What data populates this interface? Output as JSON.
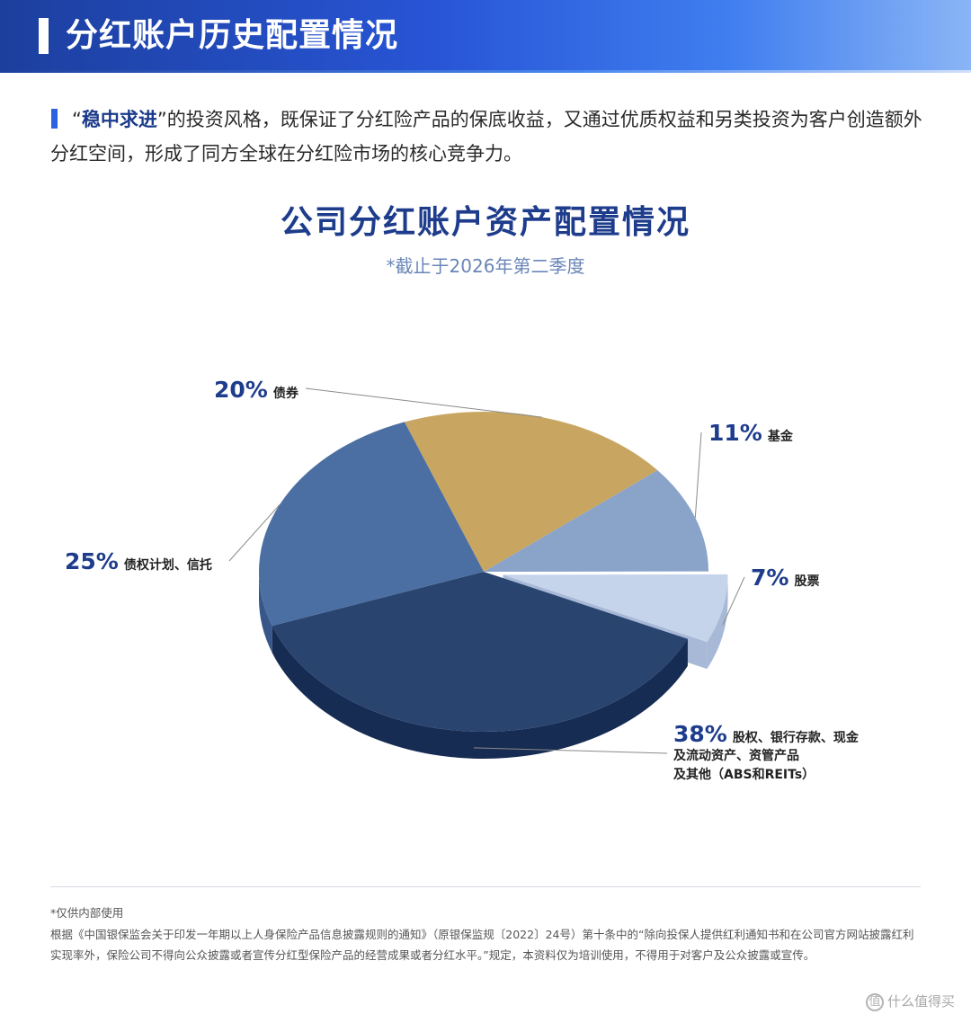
{
  "header": {
    "title": "分红账户历史配置情况"
  },
  "intro": {
    "quote_open": "“",
    "keyword": "稳中求进",
    "text": "”的投资风格，既保证了分红险产品的保底收益，又通过优质权益和另类投资为客户创造额外分红空间，形成了同方全球在分红险市场的核心竞争力。"
  },
  "chart_data": {
    "type": "pie",
    "title": "公司分红账户资产配置情况",
    "subtitle": "*截止于2026年第二季度",
    "slices": [
      {
        "pct_label": "20%",
        "value": 20,
        "name": "债券",
        "color": "#c8a661",
        "side": "#a5874b"
      },
      {
        "pct_label": "11%",
        "value": 11,
        "name": "基金",
        "color": "#8aa3c9",
        "side": "#6e88b0"
      },
      {
        "pct_label": "7%",
        "value": 7,
        "name": "股票",
        "color": "#c5d4ea",
        "side": "#a7b9d6"
      },
      {
        "pct_label": "38%",
        "value": 38,
        "name": "股权、银行存款、现金",
        "name_line2": "及流动资产、资管产品",
        "name_line3": "及其他（ABS和REITs）",
        "color": "#2a4470",
        "side": "#172c52"
      },
      {
        "pct_label": "25%",
        "value": 25,
        "name": "债权计划、信托",
        "color": "#4b6fa2",
        "side": "#37568a"
      }
    ]
  },
  "footer": {
    "note1": "*仅供内部使用",
    "note2": "根据《中国银保监会关于印发一年期以上人身保险产品信息披露规则的通知》（原银保监规〔2022〕24号）第十条中的“除向投保人提供红利通知书和在公司官方网站披露红利实现率外，保险公司不得向公众披露或者宣传分红型保险产品的经营成果或者分红水平。”规定，本资料仅为培训使用，不得用于对客户及公众披露或宣传。"
  },
  "watermark": {
    "icon": "值",
    "text": "什么值得买"
  }
}
